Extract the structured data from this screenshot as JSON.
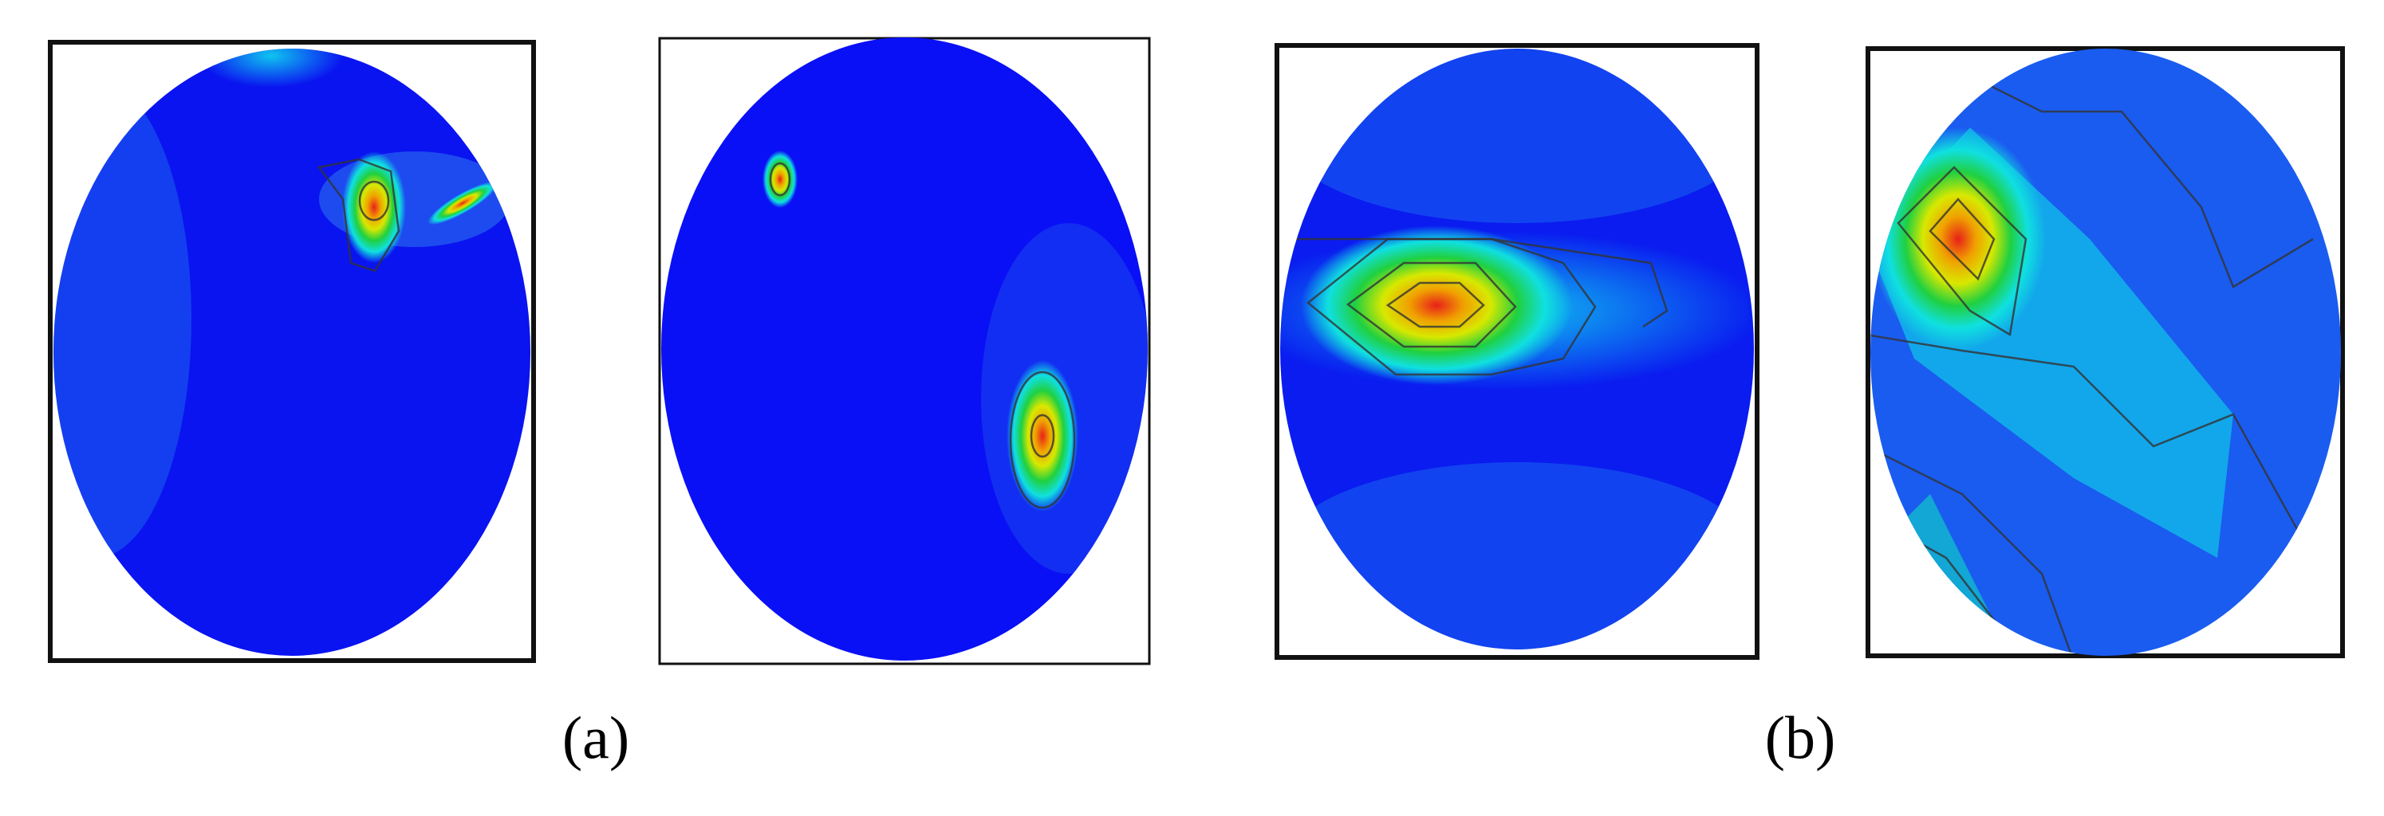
{
  "figure": {
    "labels": [
      "(a)",
      "(b)"
    ]
  }
}
